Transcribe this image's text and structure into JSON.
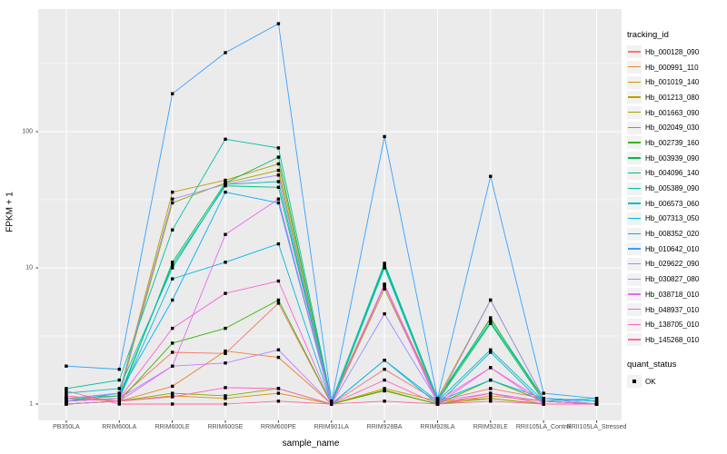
{
  "figure": {
    "type": "ggplot-line-chart",
    "background": "#ffffff",
    "panel_background": "#ebebeb",
    "gridline_color": "#ffffff",
    "marker_color": "#000000",
    "tick_text_color": "#4d4d4d"
  },
  "legend": {
    "color_title": "tracking_id",
    "shape_title": "quant_status",
    "shape_items": [
      {
        "label": "OK",
        "shape": "black-square"
      }
    ]
  },
  "axes": {
    "x_title": "sample_name",
    "y_title": "FPKM + 1",
    "y_scale": "log10",
    "y_tick_labels": [
      "1",
      "10",
      "100"
    ],
    "y_tick_values": [
      1,
      10,
      100
    ],
    "y_minor_values": [
      3.162,
      31.62,
      316.2
    ]
  },
  "chart_data": {
    "type": "line",
    "title": "",
    "xlabel": "sample_name",
    "ylabel": "FPKM + 1",
    "y_scale": "log10",
    "ylim": [
      0.75,
      800
    ],
    "grid": true,
    "legend_position": "right",
    "point_shape": "filled-square",
    "categories": [
      "PB350LA",
      "RRIM600LA",
      "RRIM600LE",
      "RRIM600SE",
      "RRIM600PE",
      "RRIM901LA",
      "RRIM928BA",
      "RRIM928LA",
      "RRIM928LE",
      "RRII105LA_Control",
      "RRII105LA_Stressed"
    ],
    "series": [
      {
        "name": "Hb_000128_090",
        "color": "#F8766D",
        "values": [
          1.05,
          1.1,
          2.4,
          2.35,
          5.5,
          1.0,
          1.8,
          1.05,
          1.3,
          1.1,
          1.0
        ]
      },
      {
        "name": "Hb_000991_110",
        "color": "#EA8331",
        "values": [
          1.0,
          1.05,
          1.35,
          2.45,
          2.2,
          1.0,
          1.25,
          1.0,
          1.15,
          1.05,
          1.0
        ]
      },
      {
        "name": "Hb_001019_140",
        "color": "#D89000",
        "values": [
          1.1,
          1.05,
          1.15,
          1.1,
          1.2,
          1.0,
          1.3,
          1.05,
          1.1,
          1.0,
          1.0
        ]
      },
      {
        "name": "Hb_001213_080",
        "color": "#C09B00",
        "values": [
          1.1,
          1.2,
          36,
          44,
          58,
          1.05,
          7.5,
          1.1,
          5.8,
          1.1,
          1.05
        ]
      },
      {
        "name": "Hb_001663_090",
        "color": "#A3A500",
        "values": [
          1.05,
          1.15,
          30,
          42,
          52,
          1.0,
          7.0,
          1.05,
          4.3,
          1.05,
          1.0
        ]
      },
      {
        "name": "Hb_002049_030",
        "color": "#7CAE00",
        "values": [
          1.0,
          1.05,
          1.2,
          1.15,
          1.3,
          1.0,
          1.26,
          1.0,
          1.1,
          1.0,
          1.0
        ]
      },
      {
        "name": "Hb_002739_160",
        "color": "#39B600",
        "values": [
          1.0,
          1.05,
          2.8,
          3.6,
          5.8,
          1.0,
          1.26,
          1.0,
          1.5,
          1.05,
          1.0
        ]
      },
      {
        "name": "Hb_003939_090",
        "color": "#00BB4E",
        "values": [
          1.05,
          1.1,
          11,
          42,
          65,
          1.0,
          10.5,
          1.1,
          4.0,
          1.1,
          1.05
        ]
      },
      {
        "name": "Hb_004096_140",
        "color": "#00BF7D",
        "values": [
          1.1,
          1.15,
          10.5,
          40,
          39,
          1.0,
          10.2,
          1.05,
          3.9,
          1.05,
          1.0
        ]
      },
      {
        "name": "Hb_005389_090",
        "color": "#00C1A3",
        "values": [
          1.3,
          1.5,
          19,
          88,
          76,
          1.05,
          10.8,
          1.1,
          4.2,
          1.1,
          1.05
        ]
      },
      {
        "name": "Hb_006573_060",
        "color": "#00BFC4",
        "values": [
          1.2,
          1.3,
          10,
          41,
          43,
          1.0,
          10.0,
          1.05,
          2.5,
          1.05,
          1.1
        ]
      },
      {
        "name": "Hb_007313_050",
        "color": "#00BAE0",
        "values": [
          1.05,
          1.1,
          8.3,
          11,
          15,
          1.0,
          2.1,
          1.0,
          2.4,
          1.0,
          1.0
        ]
      },
      {
        "name": "Hb_008352_020",
        "color": "#00B0F6",
        "values": [
          1.05,
          1.2,
          5.8,
          36,
          30,
          1.0,
          2.1,
          1.05,
          1.5,
          1.1,
          1.05
        ]
      },
      {
        "name": "Hb_010642_010",
        "color": "#35A2FF",
        "values": [
          1.9,
          1.8,
          190,
          380,
          620,
          1.05,
          92,
          1.1,
          47,
          1.2,
          1.1
        ]
      },
      {
        "name": "Hb_029622_090",
        "color": "#9590FF",
        "values": [
          1.1,
          1.2,
          32,
          41,
          48,
          1.0,
          4.6,
          1.05,
          5.8,
          1.1,
          1.0
        ]
      },
      {
        "name": "Hb_030827_080",
        "color": "#C77CFF",
        "values": [
          1.05,
          1.1,
          1.9,
          2.0,
          2.5,
          1.0,
          7.4,
          1.05,
          1.2,
          1.05,
          1.0
        ]
      },
      {
        "name": "Hb_038718_010",
        "color": "#E76BF3",
        "values": [
          1.0,
          1.05,
          1.9,
          17.6,
          32,
          1.0,
          7.4,
          1.0,
          1.85,
          1.0,
          1.0
        ]
      },
      {
        "name": "Hb_048937_010",
        "color": "#FA62DB",
        "values": [
          1.05,
          1.1,
          3.6,
          6.5,
          8.0,
          1.0,
          7.6,
          1.05,
          1.85,
          1.05,
          1.0
        ]
      },
      {
        "name": "Hb_138705_010",
        "color": "#FF62BC",
        "values": [
          1.15,
          1.05,
          1.13,
          1.32,
          1.3,
          1.0,
          1.5,
          1.0,
          1.2,
          1.0,
          1.0
        ]
      },
      {
        "name": "Hb_145268_010",
        "color": "#FF6A98",
        "values": [
          1.25,
          1.0,
          1.0,
          1.0,
          1.05,
          1.0,
          1.05,
          1.0,
          1.05,
          1.0,
          1.0
        ]
      }
    ]
  }
}
